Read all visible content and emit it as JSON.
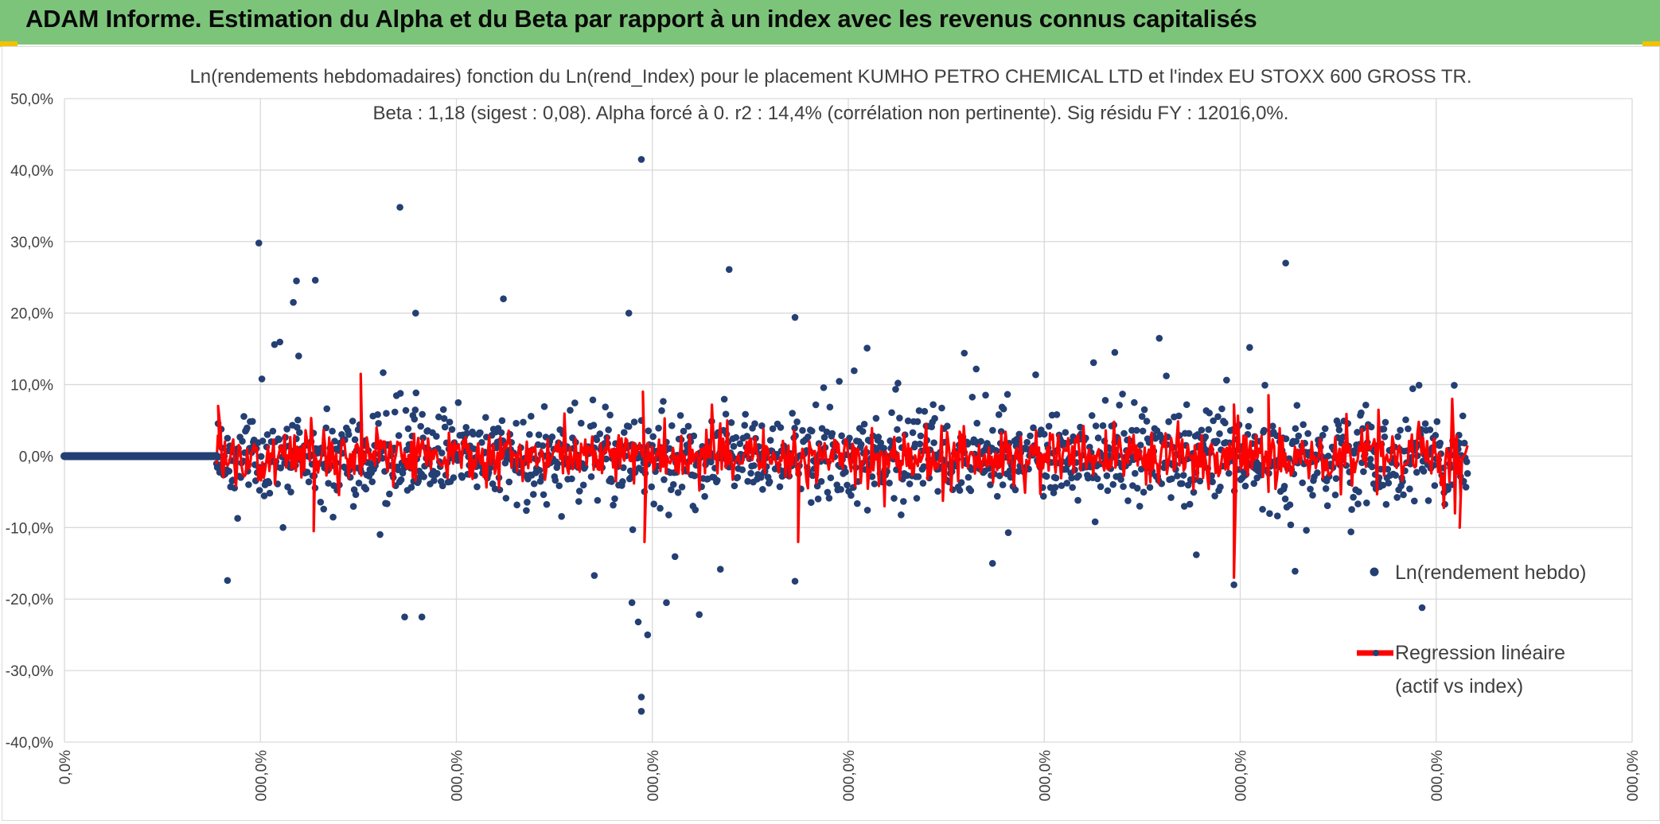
{
  "header": {
    "title": "ADAM Informe. Estimation du Alpha et du Beta par rapport à un index avec les revenus connus capitalisés",
    "color": "#7cc47a"
  },
  "chart_data": {
    "type": "scatter",
    "title": "Ln(rendements hebdomadaires) fonction du Ln(rend_Index) pour le placement KUMHO PETRO CHEMICAL LTD et l'index EU STOXX 600 GROSS TR.",
    "subtitle": "Beta : 1,18 (sigest : 0,08). Alpha forcé à 0. r2 : 14,4% (corrélation non pertinente). Sig résidu FY : 12016,0%.",
    "y_ticks": [
      "50,0%",
      "40,0%",
      "30,0%",
      "20,0%",
      "10,0%",
      "0,0%",
      "-10,0%",
      "-20,0%",
      "-30,0%",
      "-40,0%"
    ],
    "ylim": [
      -0.4,
      0.5
    ],
    "x_ticks": [
      "0,0%",
      "000,0%",
      "000,0%",
      "000,0%",
      "000,0%",
      "000,0%",
      "000,0%",
      "000,0%",
      "000,0%"
    ],
    "grid": true,
    "legend_position": "right",
    "series": [
      {
        "name": "Ln(rendement hebdo)",
        "type": "scatter",
        "color": "#243f73"
      },
      {
        "name": "Regression linéaire (actif vs index)",
        "type": "line",
        "color": "#ff0000"
      }
    ],
    "zero_period": {
      "x_start": 0,
      "x_end": 0.097
    },
    "data_x_range": [
      0.097,
      0.895
    ],
    "notable_points": [
      {
        "x": 0.368,
        "y": 0.415
      },
      {
        "x": 0.214,
        "y": 0.348
      },
      {
        "x": 0.124,
        "y": 0.298
      },
      {
        "x": 0.779,
        "y": 0.27
      },
      {
        "x": 0.424,
        "y": 0.261
      },
      {
        "x": 0.148,
        "y": 0.245
      },
      {
        "x": 0.16,
        "y": 0.246
      },
      {
        "x": 0.146,
        "y": 0.215
      },
      {
        "x": 0.28,
        "y": 0.22
      },
      {
        "x": 0.36,
        "y": 0.2
      },
      {
        "x": 0.224,
        "y": 0.2
      },
      {
        "x": 0.466,
        "y": 0.194
      },
      {
        "x": 0.134,
        "y": 0.156
      },
      {
        "x": 0.512,
        "y": 0.151
      },
      {
        "x": 0.756,
        "y": 0.152
      },
      {
        "x": 0.574,
        "y": 0.144
      },
      {
        "x": 0.67,
        "y": 0.145
      },
      {
        "x": 0.368,
        "y": -0.337
      },
      {
        "x": 0.368,
        "y": -0.357
      },
      {
        "x": 0.372,
        "y": -0.25
      },
      {
        "x": 0.366,
        "y": -0.232
      },
      {
        "x": 0.362,
        "y": -0.205
      },
      {
        "x": 0.384,
        "y": -0.205
      },
      {
        "x": 0.217,
        "y": -0.225
      },
      {
        "x": 0.228,
        "y": -0.225
      },
      {
        "x": 0.746,
        "y": -0.18
      },
      {
        "x": 0.866,
        "y": -0.212
      },
      {
        "x": 0.338,
        "y": -0.167
      },
      {
        "x": 0.466,
        "y": -0.175
      },
      {
        "x": 0.104,
        "y": -0.174
      },
      {
        "x": 0.592,
        "y": -0.15
      },
      {
        "x": 0.722,
        "y": -0.138
      },
      {
        "x": 0.785,
        "y": -0.161
      }
    ],
    "regression_spikes": [
      {
        "x": 0.098,
        "y": 0.07
      },
      {
        "x": 0.189,
        "y": 0.115
      },
      {
        "x": 0.159,
        "y": -0.105
      },
      {
        "x": 0.369,
        "y": 0.09
      },
      {
        "x": 0.37,
        "y": -0.12
      },
      {
        "x": 0.746,
        "y": 0.072
      },
      {
        "x": 0.746,
        "y": -0.17
      },
      {
        "x": 0.768,
        "y": 0.085
      },
      {
        "x": 0.468,
        "y": -0.12
      },
      {
        "x": 0.89,
        "y": -0.1
      }
    ]
  }
}
